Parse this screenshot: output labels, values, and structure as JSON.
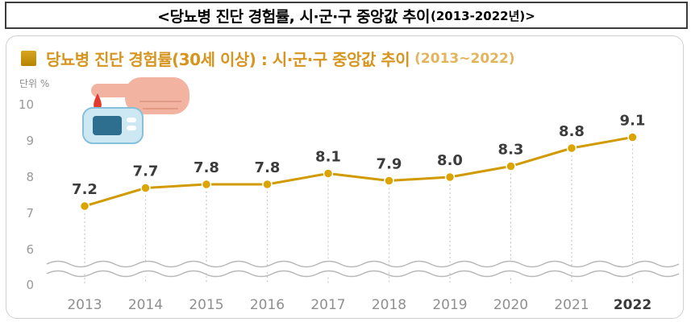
{
  "header": {
    "title_main": "<당뇨병 진단 경험률, 시·군·구 중앙값 추이",
    "title_year": "(2013-2022년)>"
  },
  "panel": {
    "title_main": "당뇨병 진단 경험률(30세 이상) : 시·군·구 중앙값 추이",
    "title_range": "(2013~2022)",
    "unit_label": "단위 %"
  },
  "chart_data": {
    "type": "line",
    "title": "당뇨병 진단 경험률(30세 이상) : 시·군·구 중앙값 추이(2013~2022)",
    "unit": "단위 %",
    "categories": [
      "2013",
      "2014",
      "2015",
      "2016",
      "2017",
      "2018",
      "2019",
      "2020",
      "2021",
      "2022"
    ],
    "values": [
      7.2,
      7.7,
      7.8,
      7.8,
      8.1,
      7.9,
      8.0,
      8.3,
      8.8,
      9.1
    ],
    "yticks": [
      10,
      9,
      8,
      7,
      6,
      0
    ],
    "axis_break": "wavy break between 0 and 6",
    "grid": false,
    "legend": "none"
  },
  "colors": {
    "line": "#d09a00",
    "marker_fill": "#dca400",
    "marker_ring": "#ffffff",
    "data_label": "#3c3c3c",
    "tick": "#9a9a9a",
    "title_gold": "#d6951f",
    "wave": "#b8b8b8",
    "dotted_line": "#c9c9c9"
  }
}
